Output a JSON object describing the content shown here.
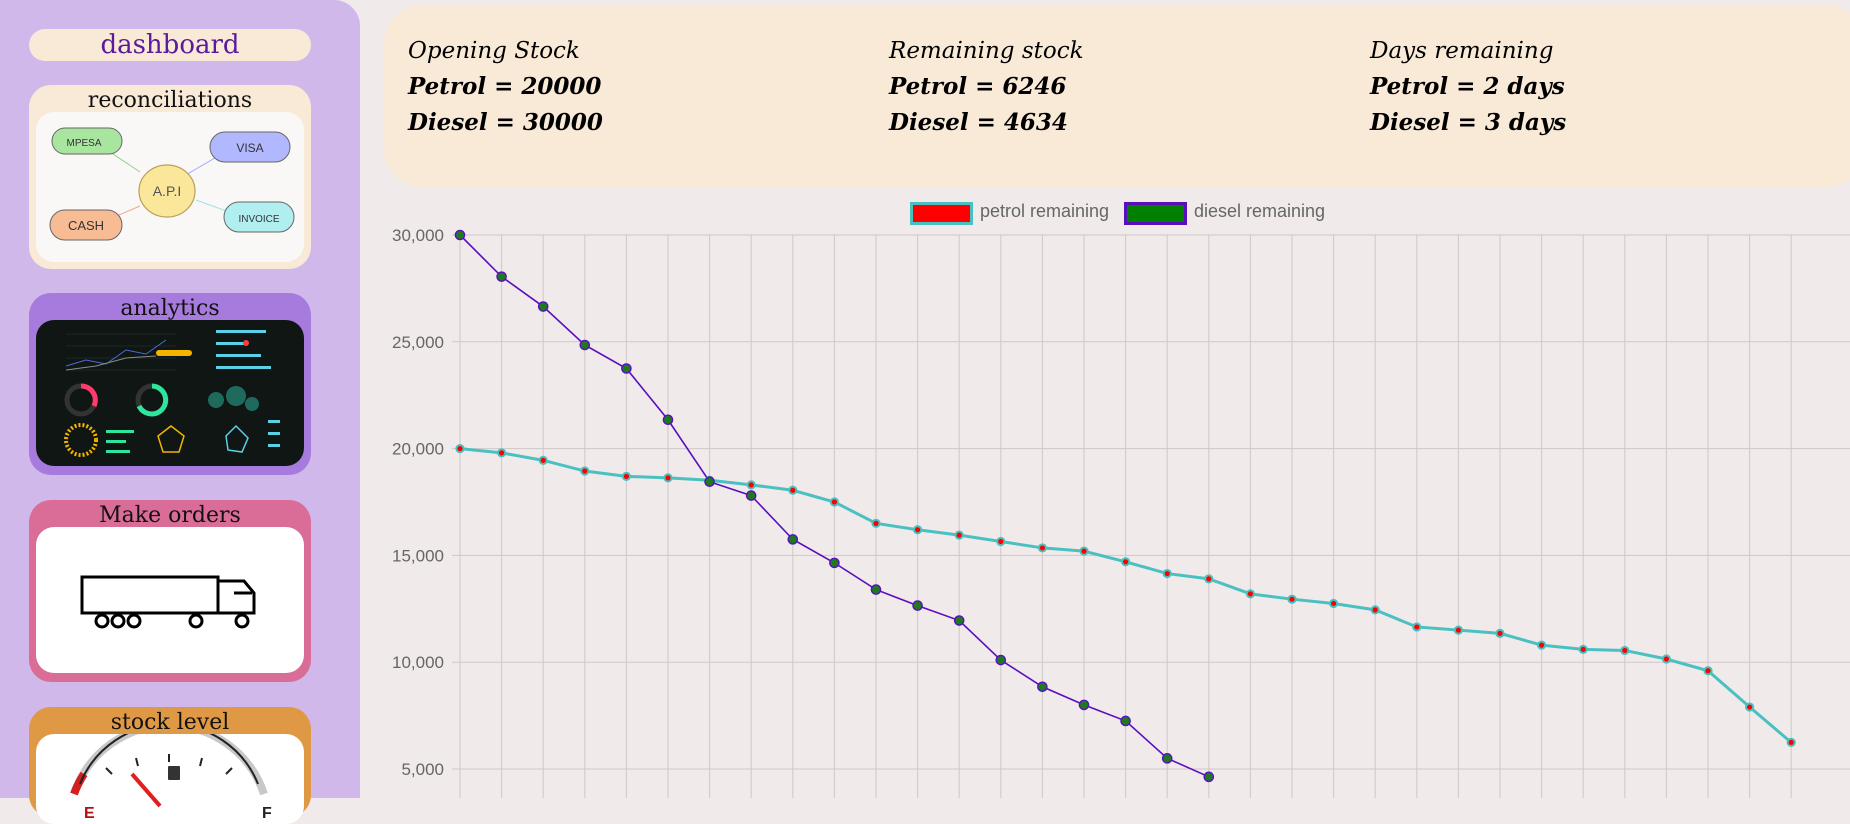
{
  "sidebar": {
    "dashboard_label": "dashboard",
    "cards": [
      {
        "title": "reconciliations",
        "bg": "#f9e9d7"
      },
      {
        "title": "analytics",
        "bg": "#a77add"
      },
      {
        "title": "Make orders",
        "bg": "#da6c98"
      },
      {
        "title": "stock level",
        "bg": "#df9944"
      }
    ],
    "recon_diagram": {
      "center": "A.P.I",
      "mpesa": "MPESA",
      "visa": "VISA",
      "cash": "CASH",
      "invoice": "INVOICE"
    },
    "gauge": {
      "empty": "E",
      "full": "F"
    }
  },
  "summary": {
    "opening": {
      "heading": "Opening Stock",
      "petrol": "Petrol = 20000",
      "diesel": "Diesel = 30000"
    },
    "remaining": {
      "heading": "Remaining stock",
      "petrol": "Petrol = 6246",
      "diesel": "Diesel = 4634"
    },
    "days": {
      "heading": "Days remaining",
      "petrol": "Petrol = 2 days",
      "diesel": "Diesel = 3 days"
    }
  },
  "chart_data": {
    "type": "line",
    "legend_position": "top",
    "grid": true,
    "ylim": [
      3700,
      30000
    ],
    "yticks": [
      "30,000",
      "25,000",
      "20,000",
      "15,000",
      "10,000",
      "5,000"
    ],
    "ytick_values": [
      30000,
      25000,
      20000,
      15000,
      10000,
      5000
    ],
    "x_count": 33,
    "series": [
      {
        "name": "petrol remaining",
        "line_color": "#4bc0c0",
        "point_color": "#ff0000",
        "legend_fill": "#ff0000",
        "legend_border": "#4bc0c0",
        "values": [
          20000,
          19800,
          19450,
          18950,
          18700,
          18630,
          18520,
          18300,
          18050,
          17500,
          16500,
          16200,
          15950,
          15650,
          15350,
          15200,
          14700,
          14150,
          13900,
          13200,
          12950,
          12750,
          12450,
          11650,
          11500,
          11350,
          10800,
          10600,
          10550,
          10150,
          9600,
          7900,
          6246
        ]
      },
      {
        "name": "diesel remaining",
        "line_color": "#5a0fbf",
        "point_color": "#1f7a1f",
        "legend_fill": "#008000",
        "legend_border": "#5a0fbf",
        "values": [
          30000,
          28050,
          26650,
          24850,
          23750,
          21350,
          18450,
          17800,
          15750,
          14650,
          13400,
          12650,
          11950,
          10100,
          8850,
          8000,
          7250,
          5500,
          4634
        ]
      }
    ]
  }
}
